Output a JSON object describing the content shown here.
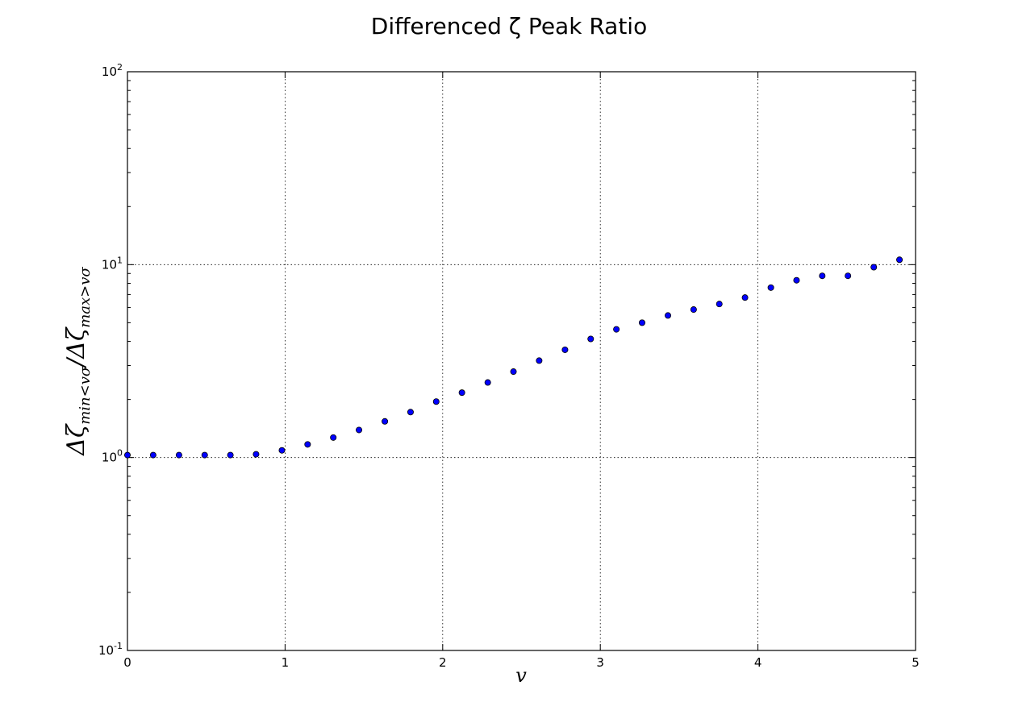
{
  "chart_data": {
    "type": "scatter",
    "title": "Differenced ζ Peak Ratio",
    "xlabel": "v",
    "ylabel": "Δζmin<vσ / Δζmax>vσ",
    "ylabel_parts": {
      "delta1": "Δζ",
      "sub1": "min<vσ",
      "slash": "/",
      "delta2": "Δζ",
      "sub2": "max>vσ"
    },
    "xlim": [
      0,
      5
    ],
    "ylim": [
      0.1,
      100
    ],
    "yscale": "log",
    "grid": true,
    "xticks": [
      "0",
      "1",
      "2",
      "3",
      "4",
      "5"
    ],
    "yticks": [
      {
        "value": 0.1,
        "base": "10",
        "exp": "-1"
      },
      {
        "value": 1,
        "base": "10",
        "exp": "0"
      },
      {
        "value": 10,
        "base": "10",
        "exp": "1"
      },
      {
        "value": 100,
        "base": "10",
        "exp": "2"
      }
    ],
    "point_color": "#0000ff",
    "series": [
      {
        "x": [
          0.0,
          0.163,
          0.327,
          0.49,
          0.653,
          0.816,
          0.98,
          1.143,
          1.306,
          1.469,
          1.633,
          1.796,
          1.959,
          2.122,
          2.286,
          2.449,
          2.612,
          2.776,
          2.939,
          3.102,
          3.265,
          3.429,
          3.592,
          3.755,
          3.918,
          4.082,
          4.245,
          4.408,
          4.571,
          4.735,
          4.898
        ],
        "y": [
          1.03,
          1.03,
          1.03,
          1.03,
          1.03,
          1.04,
          1.09,
          1.17,
          1.27,
          1.39,
          1.54,
          1.72,
          1.95,
          2.17,
          2.45,
          2.79,
          3.18,
          3.62,
          4.12,
          4.62,
          5.0,
          5.45,
          5.85,
          6.25,
          6.75,
          7.6,
          8.3,
          8.75,
          8.75,
          9.7,
          10.6
        ]
      }
    ]
  }
}
